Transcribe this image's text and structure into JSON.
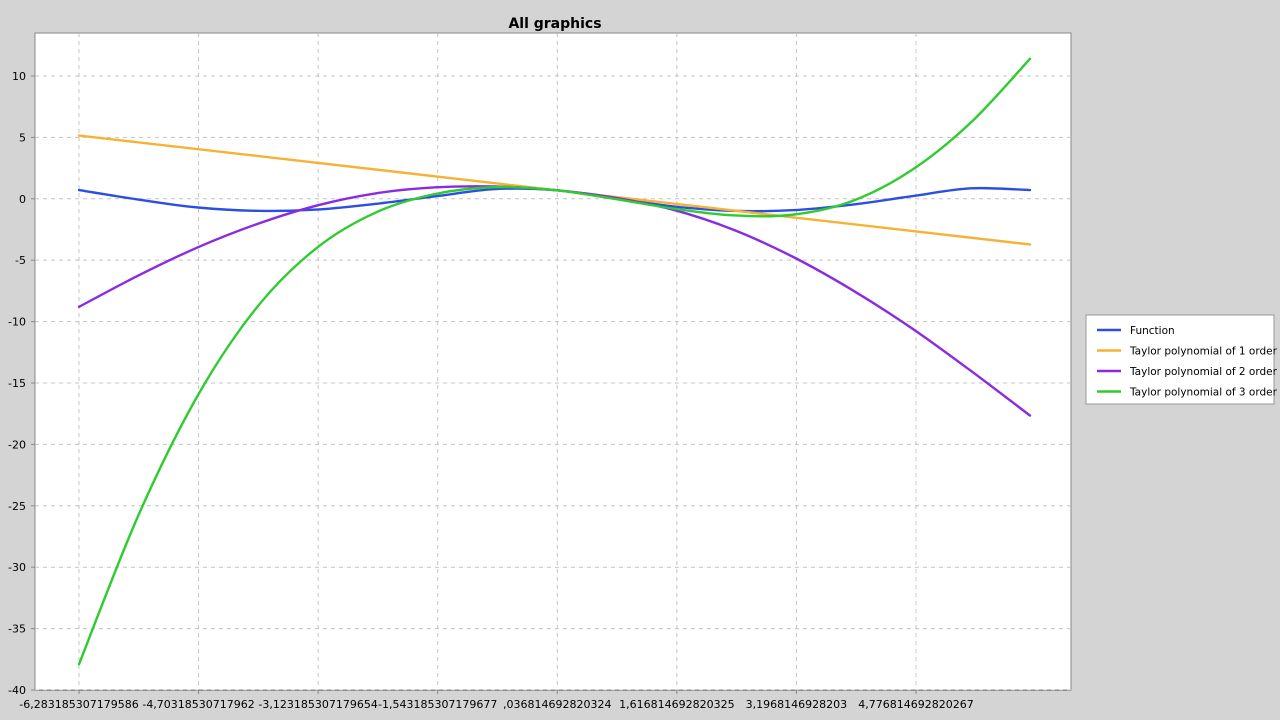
{
  "chart_data": {
    "type": "line",
    "title": "All graphics",
    "xlabel": "",
    "ylabel": "",
    "grid": true,
    "legend_position": "right",
    "xlim": [
      -6.283185307179586,
      6.283185307179586
    ],
    "ylim": [
      -40,
      13.5
    ],
    "x_tick_values": [
      -6.283185307179586,
      -4.70318530717962,
      -3.12318530717965,
      -1.54318530717968,
      0.036814692820324,
      1.61681469282033,
      3.1968146928203,
      4.77681469282027
    ],
    "x_tick_labels": [
      "-6,283185307179586",
      "-4,70318530717962",
      "-3,123185307179654",
      "-1,543185307179677",
      ",036814692820324",
      "1,616814692820325",
      "3,1968146928203",
      "4,776814692820267"
    ],
    "y_ticks": [
      10,
      5,
      0,
      -5,
      -10,
      -15,
      -20,
      -25,
      -30,
      -35,
      -40
    ],
    "series": [
      {
        "name": "Function",
        "color": "#2b4fe0",
        "x": [
          -6.283,
          -5.5,
          -4.712,
          -3.927,
          -3.142,
          -2.356,
          -1.571,
          -0.785,
          0,
          0.785,
          1.571,
          2.356,
          3.142,
          3.927,
          4.712,
          5.5,
          6.283
        ],
        "y": [
          0.71,
          -0.06,
          -0.71,
          -0.98,
          -0.88,
          -0.41,
          0.2,
          0.79,
          0.71,
          0.06,
          -0.62,
          -0.98,
          -0.93,
          -0.48,
          0.2,
          0.85,
          0.71
        ]
      },
      {
        "name": "Taylor polynomial of 1 order",
        "color": "#f5b234",
        "x": [
          -6.283,
          6.283
        ],
        "y": [
          5.15,
          -3.72
        ]
      },
      {
        "name": "Taylor polynomial of 2 order",
        "color": "#8a2be2",
        "x": [
          -6.283,
          -5.5,
          -4.712,
          -3.927,
          -3.142,
          -2.356,
          -1.571,
          -0.785,
          0,
          0.785,
          1.571,
          2.356,
          3.142,
          3.927,
          4.712,
          5.5,
          6.283
        ],
        "y": [
          -8.8,
          -6.25,
          -3.95,
          -2.05,
          -0.55,
          0.45,
          0.93,
          1.0,
          0.71,
          0.1,
          -0.9,
          -2.5,
          -4.7,
          -7.4,
          -10.5,
          -14.0,
          -17.65
        ]
      },
      {
        "name": "Taylor polynomial of 3 order",
        "color": "#2ecc2e",
        "x": [
          -6.283,
          -5.5,
          -4.712,
          -3.927,
          -3.142,
          -2.356,
          -1.571,
          -0.785,
          0,
          0.785,
          1.571,
          2.356,
          3.142,
          3.927,
          4.712,
          5.5,
          6.283
        ],
        "y": [
          -37.9,
          -25.8,
          -16.0,
          -8.8,
          -4.0,
          -1.1,
          0.4,
          0.95,
          0.71,
          0.0,
          -0.8,
          -1.35,
          -1.3,
          -0.2,
          2.3,
          6.2,
          11.4
        ]
      }
    ]
  }
}
